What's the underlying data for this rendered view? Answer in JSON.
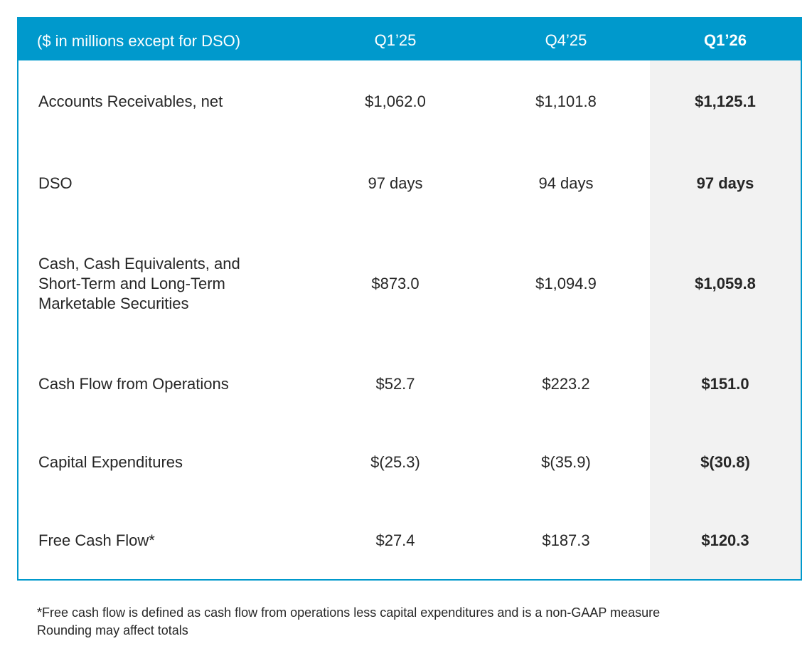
{
  "table": {
    "header": {
      "label": "($ in millions except for DSO)",
      "columns": [
        "Q1’25",
        "Q4’25",
        "Q1’26"
      ]
    },
    "rows": [
      {
        "label": "Accounts Receivables, net",
        "values": [
          "$1,062.0",
          "$1,101.8",
          "$1,125.1"
        ]
      },
      {
        "label": "DSO",
        "values": [
          "97 days",
          "94 days",
          "97 days"
        ]
      },
      {
        "label": "Cash, Cash Equivalents, and\nShort-Term and Long-Term\nMarketable Securities",
        "values": [
          "$873.0",
          "$1,094.9",
          "$1,059.8"
        ]
      },
      {
        "label": "Cash Flow from Operations",
        "values": [
          "$52.7",
          "$223.2",
          "$151.0"
        ]
      },
      {
        "label": "Capital Expenditures",
        "values": [
          "$(25.3)",
          "$(35.9)",
          "$(30.8)"
        ]
      },
      {
        "label": "Free Cash Flow*",
        "values": [
          "$27.4",
          "$187.3",
          "$120.3"
        ]
      }
    ]
  },
  "footnote": {
    "line1": "*Free cash flow is defined as cash flow from operations less capital expenditures and is a non-GAAP measure",
    "line2": "Rounding may affect totals"
  },
  "colors": {
    "header_bg": "#0099cc",
    "highlight_column_bg": "#f2f2f2"
  }
}
